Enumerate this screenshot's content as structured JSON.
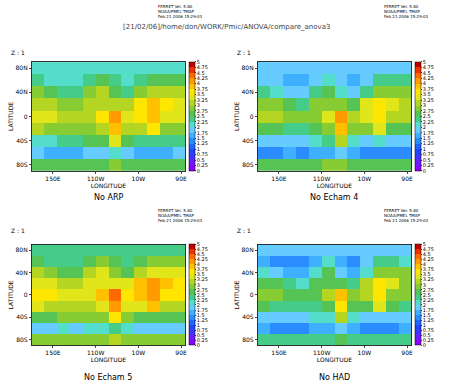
{
  "page_title": "[21/02/06]/home/don/WORK/Pmic/ANOVA/compare_anova3",
  "chart_data": [
    {
      "type": "heatmap",
      "title": "No ARP",
      "label": "Z : 1",
      "header": [
        "FERRET Ver. 5.80",
        "NOAA/PMEL TMAP",
        "Feb 21 2006 15:29:03"
      ],
      "x_label": "LONGITUDE",
      "y_label": "LATITUDE",
      "x": [
        115,
        145,
        175,
        205,
        235,
        265,
        295,
        325,
        355,
        385,
        415,
        445
      ],
      "y": [
        -80,
        -60,
        -40,
        -20,
        0,
        20,
        40,
        60,
        80
      ],
      "z": [
        [
          2.5,
          2.5,
          2.5,
          2.5,
          2.5,
          2.5,
          2.75,
          2.5,
          2.5,
          2.5,
          2.5,
          2.5
        ],
        [
          1.75,
          1.5,
          1.5,
          1.5,
          1.75,
          1.75,
          2,
          1.75,
          1.5,
          1.5,
          1.5,
          1.75
        ],
        [
          2,
          2,
          2.25,
          2.25,
          2.5,
          2.5,
          3.25,
          2.5,
          2.25,
          2.25,
          2.25,
          2.25
        ],
        [
          3,
          2.75,
          2.75,
          2.75,
          2.75,
          3,
          3.75,
          3,
          3,
          3.5,
          2.75,
          2.75
        ],
        [
          3.25,
          3.25,
          3,
          3,
          3,
          3.5,
          4,
          3.25,
          3.5,
          3.75,
          3.25,
          3.25
        ],
        [
          3,
          3,
          2.75,
          2.75,
          3,
          3,
          3,
          3,
          3.5,
          3.75,
          3.5,
          3.25
        ],
        [
          2.75,
          2.5,
          2.25,
          2.25,
          2.75,
          3,
          2.5,
          2.25,
          2.75,
          3,
          3,
          3
        ],
        [
          2.25,
          2,
          2,
          2,
          2.25,
          2.5,
          2.25,
          2,
          2.25,
          2.5,
          2.5,
          2.5
        ],
        [
          2,
          2,
          2,
          2,
          2,
          2,
          2,
          2,
          2,
          2,
          2,
          2
        ]
      ],
      "xlim": [
        100,
        460
      ],
      "ylim": [
        -90,
        90
      ],
      "xticks": [
        {
          "value": 150,
          "label": "150E"
        },
        {
          "value": 250,
          "label": "110W"
        },
        {
          "value": 350,
          "label": "10W"
        },
        {
          "value": 450,
          "label": "90E"
        }
      ],
      "yticks": [
        {
          "value": -80,
          "label": "80S"
        },
        {
          "value": -40,
          "label": "40S"
        },
        0,
        {
          "value": 40,
          "label": "40N"
        },
        {
          "value": 80,
          "label": "80N"
        }
      ],
      "colorbar_range": [
        0,
        5
      ],
      "colorbar_ticks": [
        0,
        0.25,
        0.5,
        0.75,
        1,
        1.25,
        1.5,
        1.75,
        2,
        2.25,
        2.5,
        2.75,
        3,
        3.25,
        3.5,
        3.75,
        4,
        4.25,
        4.5,
        4.75,
        5
      ]
    },
    {
      "type": "heatmap",
      "title": "No Echam 4",
      "label": "Z : 1",
      "header": [
        "FERRET Ver. 5.80",
        "NOAA/PMEL TMAP",
        "Feb 21 2006 15:29:03"
      ],
      "x_label": "LONGITUDE",
      "y_label": "LATITUDE",
      "x": [
        115,
        145,
        175,
        205,
        235,
        265,
        295,
        325,
        355,
        385,
        415,
        445
      ],
      "y": [
        -80,
        -60,
        -40,
        -20,
        0,
        20,
        40,
        60,
        80
      ],
      "z": [
        [
          2.5,
          2.5,
          2.5,
          2.5,
          2.5,
          2.75,
          2.75,
          2.5,
          2.5,
          2.5,
          2.5,
          2.5
        ],
        [
          1.25,
          1.25,
          1.5,
          1.25,
          1.5,
          1.5,
          1.75,
          1.5,
          1.25,
          1.25,
          1.25,
          1.25
        ],
        [
          1.75,
          1.75,
          1.75,
          1.75,
          2,
          2.25,
          3,
          2,
          1.75,
          2,
          1.75,
          1.75
        ],
        [
          2.5,
          2.5,
          2.25,
          2.25,
          2.5,
          2.75,
          3.75,
          2.75,
          2.75,
          3.25,
          2.5,
          2.5
        ],
        [
          3,
          3,
          2.75,
          2.75,
          2.75,
          3.25,
          4,
          3,
          3.25,
          3.5,
          3,
          3
        ],
        [
          2.75,
          2.75,
          2.5,
          2.25,
          2.75,
          2.75,
          2.75,
          2.5,
          3.25,
          3.5,
          3.25,
          3
        ],
        [
          2.25,
          2,
          1.75,
          1.75,
          2.25,
          2.5,
          2,
          1.75,
          2.25,
          2.75,
          2.75,
          2.75
        ],
        [
          1.75,
          1.75,
          1.5,
          1.5,
          1.75,
          2,
          1.75,
          1.5,
          1.75,
          2.25,
          2.25,
          2.25
        ],
        [
          1.75,
          1.75,
          1.75,
          1.75,
          1.75,
          1.75,
          1.75,
          1.75,
          1.75,
          1.75,
          1.75,
          1.75
        ]
      ],
      "xlim": [
        100,
        460
      ],
      "ylim": [
        -90,
        90
      ],
      "xticks": [
        {
          "value": 150,
          "label": "150E"
        },
        {
          "value": 250,
          "label": "110W"
        },
        {
          "value": 350,
          "label": "10W"
        },
        {
          "value": 450,
          "label": "90E"
        }
      ],
      "yticks": [
        {
          "value": -80,
          "label": "80S"
        },
        {
          "value": -40,
          "label": "40S"
        },
        0,
        {
          "value": 40,
          "label": "40N"
        },
        {
          "value": 80,
          "label": "80N"
        }
      ],
      "colorbar_range": [
        0,
        5
      ],
      "colorbar_ticks": [
        0,
        0.25,
        0.5,
        0.75,
        1,
        1.25,
        1.5,
        1.75,
        2,
        2.25,
        2.5,
        2.75,
        3,
        3.25,
        3.5,
        3.75,
        4,
        4.25,
        4.5,
        4.75,
        5
      ]
    },
    {
      "type": "heatmap",
      "title": "No Echam 5",
      "label": "Z : 1",
      "header": [
        "FERRET Ver. 5.80",
        "NOAA/PMEL TMAP",
        "Feb 21 2006 15:29:03"
      ],
      "x_label": "LONGITUDE",
      "y_label": "LATITUDE",
      "x": [
        115,
        145,
        175,
        205,
        235,
        265,
        295,
        325,
        355,
        385,
        415,
        445
      ],
      "y": [
        -80,
        -60,
        -40,
        -20,
        0,
        20,
        40,
        60,
        80
      ],
      "z": [
        [
          2.75,
          2.75,
          2.75,
          2.75,
          2.75,
          2.75,
          3,
          2.75,
          2.75,
          2.75,
          2.75,
          2.75
        ],
        [
          1.75,
          1.75,
          2,
          1.75,
          2,
          2,
          2.25,
          2,
          1.75,
          1.75,
          1.75,
          1.75
        ],
        [
          2.5,
          2.5,
          2.75,
          2.75,
          2.75,
          2.75,
          3.5,
          2.75,
          2.5,
          2.5,
          2.5,
          2.5
        ],
        [
          3.25,
          3,
          3,
          3,
          3,
          3.25,
          4,
          3.25,
          3.25,
          3.75,
          3,
          3
        ],
        [
          3.5,
          3.5,
          3.25,
          3.25,
          3.25,
          3.75,
          4.25,
          3.5,
          3.75,
          4,
          3.5,
          3.5
        ],
        [
          3.25,
          3.25,
          3,
          3,
          3.25,
          3.25,
          3.25,
          3.25,
          3.75,
          4,
          3.75,
          3.5
        ],
        [
          3,
          2.75,
          2.5,
          2.5,
          3,
          3.25,
          2.75,
          2.5,
          3,
          3.25,
          3.25,
          3.25
        ],
        [
          2.5,
          2.25,
          2.25,
          2.25,
          2.5,
          2.75,
          2.5,
          2.25,
          2.5,
          2.75,
          2.75,
          2.75
        ],
        [
          2.25,
          2.25,
          2.25,
          2.25,
          2.25,
          2.25,
          2.25,
          2.25,
          2.25,
          2.25,
          2.25,
          2.25
        ]
      ],
      "xlim": [
        100,
        460
      ],
      "ylim": [
        -90,
        90
      ],
      "xticks": [
        {
          "value": 150,
          "label": "150E"
        },
        {
          "value": 250,
          "label": "110W"
        },
        {
          "value": 350,
          "label": "10W"
        },
        {
          "value": 450,
          "label": "90E"
        }
      ],
      "yticks": [
        {
          "value": -80,
          "label": "80S"
        },
        {
          "value": -40,
          "label": "40S"
        },
        0,
        {
          "value": 40,
          "label": "40N"
        },
        {
          "value": 80,
          "label": "80N"
        }
      ],
      "colorbar_range": [
        0,
        5
      ],
      "colorbar_ticks": [
        0,
        0.25,
        0.5,
        0.75,
        1,
        1.25,
        1.5,
        1.75,
        2,
        2.25,
        2.5,
        2.75,
        3,
        3.25,
        3.5,
        3.75,
        4,
        4.25,
        4.5,
        4.75,
        5
      ]
    },
    {
      "type": "heatmap",
      "title": "No HAD",
      "label": "Z : 1",
      "header": [
        "FERRET Ver. 5.80",
        "NOAA/PMEL TMAP",
        "Feb 21 2006 15:29:03"
      ],
      "x_label": "LONGITUDE",
      "y_label": "LATITUDE",
      "x": [
        115,
        145,
        175,
        205,
        235,
        265,
        295,
        325,
        355,
        385,
        415,
        445
      ],
      "y": [
        -80,
        -60,
        -40,
        -20,
        0,
        20,
        40,
        60,
        80
      ],
      "z": [
        [
          2.25,
          2.25,
          2.25,
          2.25,
          2.25,
          2.25,
          2.5,
          2.25,
          2.25,
          2.25,
          2.25,
          2.25
        ],
        [
          1.5,
          1.25,
          1.25,
          1.25,
          1.5,
          1.5,
          1.75,
          1.5,
          1.25,
          1.25,
          1.25,
          1.5
        ],
        [
          1.75,
          1.75,
          1.75,
          1.75,
          2,
          2,
          3,
          2,
          1.75,
          1.75,
          1.75,
          1.75
        ],
        [
          2.5,
          2.25,
          2.25,
          2.25,
          2.25,
          2.5,
          3.5,
          2.5,
          2.5,
          3.25,
          2.5,
          2.25
        ],
        [
          2.75,
          2.75,
          2.5,
          2.5,
          2.5,
          3,
          3.75,
          2.75,
          3,
          3.5,
          2.75,
          2.75
        ],
        [
          2.5,
          2.5,
          2.25,
          2,
          2.5,
          2.5,
          2.5,
          2.25,
          3,
          3.5,
          3.25,
          2.75
        ],
        [
          2,
          1.75,
          1.5,
          1.5,
          2,
          2.5,
          1.75,
          1.5,
          2,
          2.75,
          2.75,
          2.75
        ],
        [
          1.5,
          1.25,
          1.25,
          1.25,
          1.5,
          2,
          1.5,
          1.25,
          1.75,
          2.25,
          2.25,
          2
        ],
        [
          1.75,
          1.75,
          1.75,
          1.75,
          1.75,
          1.75,
          1.75,
          1.75,
          1.75,
          1.75,
          1.75,
          1.75
        ]
      ],
      "xlim": [
        100,
        460
      ],
      "ylim": [
        -90,
        90
      ],
      "xticks": [
        {
          "value": 150,
          "label": "150E"
        },
        {
          "value": 250,
          "label": "110W"
        },
        {
          "value": 350,
          "label": "10W"
        },
        {
          "value": 450,
          "label": "90E"
        }
      ],
      "yticks": [
        {
          "value": -80,
          "label": "80S"
        },
        {
          "value": -40,
          "label": "40S"
        },
        0,
        {
          "value": 40,
          "label": "40N"
        },
        {
          "value": 80,
          "label": "80N"
        }
      ],
      "colorbar_range": [
        0,
        5
      ],
      "colorbar_ticks": [
        0,
        0.25,
        0.5,
        0.75,
        1,
        1.25,
        1.5,
        1.75,
        2,
        2.25,
        2.5,
        2.75,
        3,
        3.25,
        3.5,
        3.75,
        4,
        4.25,
        4.5,
        4.75,
        5
      ]
    }
  ]
}
